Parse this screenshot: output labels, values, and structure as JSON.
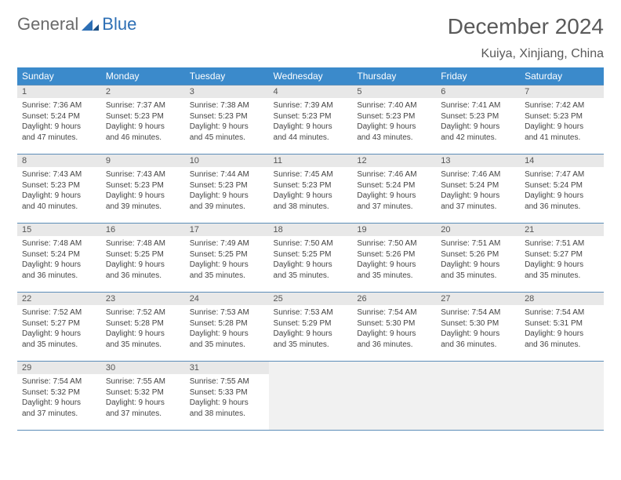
{
  "logo": {
    "general": "General",
    "blue": "Blue"
  },
  "title": "December 2024",
  "location": "Kuiya, Xinjiang, China",
  "colors": {
    "header_bg": "#3b8acb",
    "header_text": "#ffffff",
    "border": "#5c8db8",
    "daynum_bg": "#e8e8e8",
    "text": "#444444",
    "logo_gray": "#6a6a6a",
    "logo_blue": "#2d6fb5"
  },
  "weekdays": [
    "Sunday",
    "Monday",
    "Tuesday",
    "Wednesday",
    "Thursday",
    "Friday",
    "Saturday"
  ],
  "days": [
    {
      "n": "1",
      "sr": "Sunrise: 7:36 AM",
      "ss": "Sunset: 5:24 PM",
      "dl1": "Daylight: 9 hours",
      "dl2": "and 47 minutes."
    },
    {
      "n": "2",
      "sr": "Sunrise: 7:37 AM",
      "ss": "Sunset: 5:23 PM",
      "dl1": "Daylight: 9 hours",
      "dl2": "and 46 minutes."
    },
    {
      "n": "3",
      "sr": "Sunrise: 7:38 AM",
      "ss": "Sunset: 5:23 PM",
      "dl1": "Daylight: 9 hours",
      "dl2": "and 45 minutes."
    },
    {
      "n": "4",
      "sr": "Sunrise: 7:39 AM",
      "ss": "Sunset: 5:23 PM",
      "dl1": "Daylight: 9 hours",
      "dl2": "and 44 minutes."
    },
    {
      "n": "5",
      "sr": "Sunrise: 7:40 AM",
      "ss": "Sunset: 5:23 PM",
      "dl1": "Daylight: 9 hours",
      "dl2": "and 43 minutes."
    },
    {
      "n": "6",
      "sr": "Sunrise: 7:41 AM",
      "ss": "Sunset: 5:23 PM",
      "dl1": "Daylight: 9 hours",
      "dl2": "and 42 minutes."
    },
    {
      "n": "7",
      "sr": "Sunrise: 7:42 AM",
      "ss": "Sunset: 5:23 PM",
      "dl1": "Daylight: 9 hours",
      "dl2": "and 41 minutes."
    },
    {
      "n": "8",
      "sr": "Sunrise: 7:43 AM",
      "ss": "Sunset: 5:23 PM",
      "dl1": "Daylight: 9 hours",
      "dl2": "and 40 minutes."
    },
    {
      "n": "9",
      "sr": "Sunrise: 7:43 AM",
      "ss": "Sunset: 5:23 PM",
      "dl1": "Daylight: 9 hours",
      "dl2": "and 39 minutes."
    },
    {
      "n": "10",
      "sr": "Sunrise: 7:44 AM",
      "ss": "Sunset: 5:23 PM",
      "dl1": "Daylight: 9 hours",
      "dl2": "and 39 minutes."
    },
    {
      "n": "11",
      "sr": "Sunrise: 7:45 AM",
      "ss": "Sunset: 5:23 PM",
      "dl1": "Daylight: 9 hours",
      "dl2": "and 38 minutes."
    },
    {
      "n": "12",
      "sr": "Sunrise: 7:46 AM",
      "ss": "Sunset: 5:24 PM",
      "dl1": "Daylight: 9 hours",
      "dl2": "and 37 minutes."
    },
    {
      "n": "13",
      "sr": "Sunrise: 7:46 AM",
      "ss": "Sunset: 5:24 PM",
      "dl1": "Daylight: 9 hours",
      "dl2": "and 37 minutes."
    },
    {
      "n": "14",
      "sr": "Sunrise: 7:47 AM",
      "ss": "Sunset: 5:24 PM",
      "dl1": "Daylight: 9 hours",
      "dl2": "and 36 minutes."
    },
    {
      "n": "15",
      "sr": "Sunrise: 7:48 AM",
      "ss": "Sunset: 5:24 PM",
      "dl1": "Daylight: 9 hours",
      "dl2": "and 36 minutes."
    },
    {
      "n": "16",
      "sr": "Sunrise: 7:48 AM",
      "ss": "Sunset: 5:25 PM",
      "dl1": "Daylight: 9 hours",
      "dl2": "and 36 minutes."
    },
    {
      "n": "17",
      "sr": "Sunrise: 7:49 AM",
      "ss": "Sunset: 5:25 PM",
      "dl1": "Daylight: 9 hours",
      "dl2": "and 35 minutes."
    },
    {
      "n": "18",
      "sr": "Sunrise: 7:50 AM",
      "ss": "Sunset: 5:25 PM",
      "dl1": "Daylight: 9 hours",
      "dl2": "and 35 minutes."
    },
    {
      "n": "19",
      "sr": "Sunrise: 7:50 AM",
      "ss": "Sunset: 5:26 PM",
      "dl1": "Daylight: 9 hours",
      "dl2": "and 35 minutes."
    },
    {
      "n": "20",
      "sr": "Sunrise: 7:51 AM",
      "ss": "Sunset: 5:26 PM",
      "dl1": "Daylight: 9 hours",
      "dl2": "and 35 minutes."
    },
    {
      "n": "21",
      "sr": "Sunrise: 7:51 AM",
      "ss": "Sunset: 5:27 PM",
      "dl1": "Daylight: 9 hours",
      "dl2": "and 35 minutes."
    },
    {
      "n": "22",
      "sr": "Sunrise: 7:52 AM",
      "ss": "Sunset: 5:27 PM",
      "dl1": "Daylight: 9 hours",
      "dl2": "and 35 minutes."
    },
    {
      "n": "23",
      "sr": "Sunrise: 7:52 AM",
      "ss": "Sunset: 5:28 PM",
      "dl1": "Daylight: 9 hours",
      "dl2": "and 35 minutes."
    },
    {
      "n": "24",
      "sr": "Sunrise: 7:53 AM",
      "ss": "Sunset: 5:28 PM",
      "dl1": "Daylight: 9 hours",
      "dl2": "and 35 minutes."
    },
    {
      "n": "25",
      "sr": "Sunrise: 7:53 AM",
      "ss": "Sunset: 5:29 PM",
      "dl1": "Daylight: 9 hours",
      "dl2": "and 35 minutes."
    },
    {
      "n": "26",
      "sr": "Sunrise: 7:54 AM",
      "ss": "Sunset: 5:30 PM",
      "dl1": "Daylight: 9 hours",
      "dl2": "and 36 minutes."
    },
    {
      "n": "27",
      "sr": "Sunrise: 7:54 AM",
      "ss": "Sunset: 5:30 PM",
      "dl1": "Daylight: 9 hours",
      "dl2": "and 36 minutes."
    },
    {
      "n": "28",
      "sr": "Sunrise: 7:54 AM",
      "ss": "Sunset: 5:31 PM",
      "dl1": "Daylight: 9 hours",
      "dl2": "and 36 minutes."
    },
    {
      "n": "29",
      "sr": "Sunrise: 7:54 AM",
      "ss": "Sunset: 5:32 PM",
      "dl1": "Daylight: 9 hours",
      "dl2": "and 37 minutes."
    },
    {
      "n": "30",
      "sr": "Sunrise: 7:55 AM",
      "ss": "Sunset: 5:32 PM",
      "dl1": "Daylight: 9 hours",
      "dl2": "and 37 minutes."
    },
    {
      "n": "31",
      "sr": "Sunrise: 7:55 AM",
      "ss": "Sunset: 5:33 PM",
      "dl1": "Daylight: 9 hours",
      "dl2": "and 38 minutes."
    }
  ]
}
